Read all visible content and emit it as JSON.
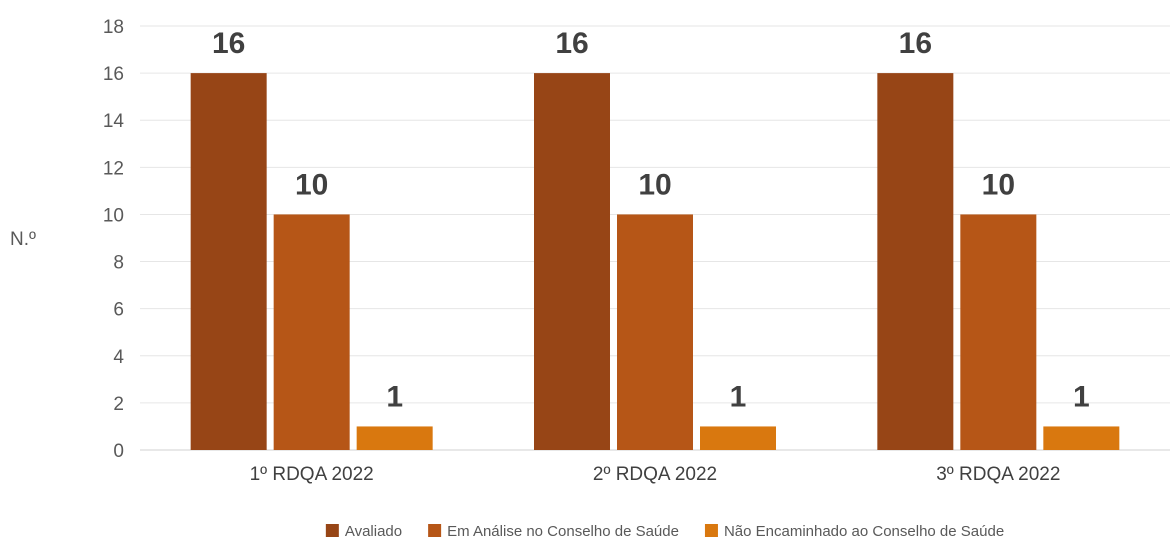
{
  "chart_data": {
    "type": "bar",
    "title": "",
    "xlabel": "",
    "ylabel": "N.º",
    "ylim": [
      0,
      18
    ],
    "yticks": [
      0,
      2,
      4,
      6,
      8,
      10,
      12,
      14,
      16,
      18
    ],
    "grid": true,
    "legend_position": "bottom",
    "categories": [
      "1º RDQA 2022",
      "2º RDQA 2022",
      "3º RDQA 2022"
    ],
    "series": [
      {
        "name": "Avaliado",
        "values": [
          16,
          16,
          16
        ],
        "color": "#974516"
      },
      {
        "name": "Em Análise no Conselho de Saúde",
        "values": [
          10,
          10,
          10
        ],
        "color": "#b65617"
      },
      {
        "name": "Não Encaminhado ao Conselho de Saúde",
        "values": [
          1,
          1,
          1
        ],
        "color": "#d9780f"
      }
    ]
  }
}
